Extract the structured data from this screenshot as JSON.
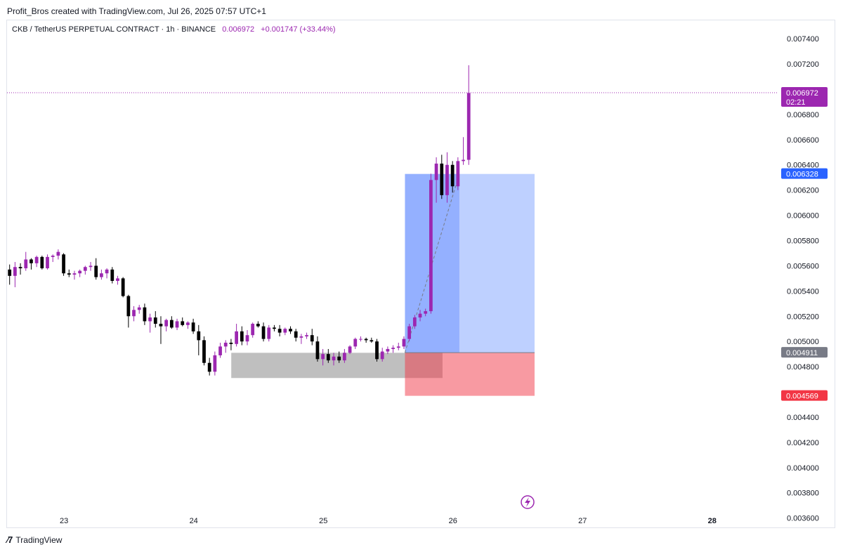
{
  "header": {
    "credit": "Profit_Bros created with TradingView.com, Jul 26, 2025 07:57 UTC+1"
  },
  "legend": {
    "symbol": "CKB / TetherUS PERPETUAL CONTRACT · 1h · BINANCE",
    "price": "0.006972",
    "change": "+0.001747 (+33.44%)"
  },
  "footer": {
    "brand": "TradingView"
  },
  "colors": {
    "bull": "#9c27b0",
    "bear": "#000000",
    "profit_zone": "#2962ff",
    "loss_zone": "#f23645",
    "base_zone": "#808080",
    "entry_tag": "#787b86",
    "target_tag": "#2962ff",
    "stop_tag": "#f23645",
    "last_price_tag": "#9c27b0"
  },
  "chart_data": {
    "type": "candlestick",
    "title": "CKB / TetherUS PERPETUAL CONTRACT · 1h · BINANCE",
    "interval": "1h",
    "y_axis": {
      "position": "right",
      "range": [
        0.00352,
        0.00754
      ],
      "ticks": [
        "0.007400",
        "0.007200",
        "0.006800",
        "0.006600",
        "0.006400",
        "0.006200",
        "0.006000",
        "0.005800",
        "0.005600",
        "0.005400",
        "0.005200",
        "0.005000",
        "0.004800",
        "0.004400",
        "0.004200",
        "0.004000",
        "0.003800",
        "0.003600"
      ]
    },
    "x_axis": {
      "range": [
        22.56,
        28.5
      ],
      "ticks": [
        {
          "value": 23,
          "label": "23"
        },
        {
          "value": 24,
          "label": "24"
        },
        {
          "value": 25,
          "label": "25"
        },
        {
          "value": 26,
          "label": "26"
        },
        {
          "value": 27,
          "label": "27"
        },
        {
          "value": 28,
          "label": "28"
        }
      ]
    },
    "grid": false,
    "candle_start_day": 22.58,
    "candle_step_day": 0.04167,
    "candles_ohlc": [
      [
        0.00557,
        0.00561,
        0.00545,
        0.00552
      ],
      [
        0.00552,
        0.00563,
        0.00543,
        0.00559
      ],
      [
        0.00559,
        0.00562,
        0.00553,
        0.00558
      ],
      [
        0.00558,
        0.00571,
        0.00556,
        0.00565
      ],
      [
        0.00565,
        0.00566,
        0.00557,
        0.00562
      ],
      [
        0.00562,
        0.00568,
        0.00559,
        0.00567
      ],
      [
        0.00567,
        0.00568,
        0.00557,
        0.00558
      ],
      [
        0.00558,
        0.00569,
        0.00557,
        0.00567
      ],
      [
        0.00567,
        0.00569,
        0.00563,
        0.00568
      ],
      [
        0.00568,
        0.00573,
        0.00565,
        0.00571
      ],
      [
        0.00569,
        0.0057,
        0.00552,
        0.00554
      ],
      [
        0.00554,
        0.00557,
        0.00551,
        0.00553
      ],
      [
        0.00553,
        0.00556,
        0.00549,
        0.00554
      ],
      [
        0.00554,
        0.00557,
        0.00551,
        0.00556
      ],
      [
        0.00556,
        0.0056,
        0.00553,
        0.00559
      ],
      [
        0.00559,
        0.00563,
        0.00556,
        0.0056
      ],
      [
        0.0056,
        0.00566,
        0.00549,
        0.00551
      ],
      [
        0.00551,
        0.00557,
        0.00549,
        0.00554
      ],
      [
        0.00554,
        0.00558,
        0.0055,
        0.00557
      ],
      [
        0.00557,
        0.00559,
        0.00546,
        0.00548
      ],
      [
        0.00548,
        0.00552,
        0.00545,
        0.0055
      ],
      [
        0.0055,
        0.00551,
        0.00535,
        0.00536
      ],
      [
        0.00536,
        0.00537,
        0.00511,
        0.0052
      ],
      [
        0.0052,
        0.00528,
        0.00516,
        0.00525
      ],
      [
        0.00525,
        0.00529,
        0.00522,
        0.00527
      ],
      [
        0.00527,
        0.0053,
        0.00513,
        0.00516
      ],
      [
        0.00516,
        0.00522,
        0.00507,
        0.00519
      ],
      [
        0.00519,
        0.00524,
        0.00511,
        0.00514
      ],
      [
        0.00514,
        0.0052,
        0.00498,
        0.00512
      ],
      [
        0.00512,
        0.00518,
        0.00508,
        0.00517
      ],
      [
        0.00517,
        0.0052,
        0.0051,
        0.00511
      ],
      [
        0.00511,
        0.00518,
        0.00509,
        0.00516
      ],
      [
        0.00516,
        0.00519,
        0.00512,
        0.00513
      ],
      [
        0.00513,
        0.00516,
        0.0051,
        0.00515
      ],
      [
        0.00515,
        0.00518,
        0.00506,
        0.00508
      ],
      [
        0.00508,
        0.00513,
        0.00489,
        0.00501
      ],
      [
        0.00501,
        0.00504,
        0.00481,
        0.00483
      ],
      [
        0.00483,
        0.00487,
        0.00473,
        0.00476
      ],
      [
        0.00476,
        0.00492,
        0.00473,
        0.00489
      ],
      [
        0.00489,
        0.00499,
        0.00487,
        0.00496
      ],
      [
        0.00496,
        0.00501,
        0.00491,
        0.00499
      ],
      [
        0.00499,
        0.00502,
        0.00493,
        0.00498
      ],
      [
        0.00498,
        0.00514,
        0.00496,
        0.00508
      ],
      [
        0.00508,
        0.00512,
        0.00497,
        0.005
      ],
      [
        0.005,
        0.00509,
        0.00497,
        0.00505
      ],
      [
        0.00505,
        0.00515,
        0.00503,
        0.00514
      ],
      [
        0.00514,
        0.00516,
        0.00511,
        0.00512
      ],
      [
        0.00512,
        0.00515,
        0.005,
        0.00502
      ],
      [
        0.00502,
        0.00513,
        0.005,
        0.00511
      ],
      [
        0.00511,
        0.00513,
        0.00508,
        0.0051
      ],
      [
        0.0051,
        0.00513,
        0.00504,
        0.00507
      ],
      [
        0.00507,
        0.00511,
        0.00505,
        0.0051
      ],
      [
        0.0051,
        0.00512,
        0.00506,
        0.00508
      ],
      [
        0.00508,
        0.0051,
        0.005,
        0.00503
      ],
      [
        0.00503,
        0.00506,
        0.00498,
        0.00504
      ],
      [
        0.00504,
        0.00507,
        0.00502,
        0.00505
      ],
      [
        0.00505,
        0.0051,
        0.00497,
        0.005
      ],
      [
        0.005,
        0.00504,
        0.00484,
        0.00486
      ],
      [
        0.00486,
        0.00494,
        0.00481,
        0.0049
      ],
      [
        0.0049,
        0.00494,
        0.00483,
        0.00485
      ],
      [
        0.00485,
        0.00491,
        0.00481,
        0.00488
      ],
      [
        0.00488,
        0.00492,
        0.00483,
        0.00485
      ],
      [
        0.00485,
        0.00494,
        0.00483,
        0.00491
      ],
      [
        0.00491,
        0.00497,
        0.0049,
        0.00496
      ],
      [
        0.00496,
        0.00503,
        0.00494,
        0.00502
      ],
      [
        0.00502,
        0.00504,
        0.005,
        0.00502
      ],
      [
        0.00502,
        0.00503,
        0.00499,
        0.00501
      ],
      [
        0.00501,
        0.00503,
        0.00499,
        0.005
      ],
      [
        0.005,
        0.00502,
        0.00484,
        0.00486
      ],
      [
        0.00486,
        0.00495,
        0.00484,
        0.00492
      ],
      [
        0.00492,
        0.00496,
        0.0049,
        0.00494
      ],
      [
        0.00494,
        0.00497,
        0.00491,
        0.00495
      ],
      [
        0.00495,
        0.00499,
        0.00493,
        0.00496
      ],
      [
        0.00496,
        0.00504,
        0.00494,
        0.00502
      ],
      [
        0.00502,
        0.00514,
        0.005,
        0.00512
      ],
      [
        0.00512,
        0.00521,
        0.0051,
        0.00519
      ],
      [
        0.00519,
        0.00525,
        0.00516,
        0.00522
      ],
      [
        0.00522,
        0.00526,
        0.0052,
        0.00524
      ],
      [
        0.00524,
        0.00633,
        0.00522,
        0.00628
      ],
      [
        0.00628,
        0.00646,
        0.0061,
        0.00641
      ],
      [
        0.00641,
        0.00648,
        0.00613,
        0.00616
      ],
      [
        0.00616,
        0.0065,
        0.0061,
        0.0064
      ],
      [
        0.0064,
        0.00643,
        0.00618,
        0.00623
      ],
      [
        0.00623,
        0.00646,
        0.0062,
        0.00643
      ],
      [
        0.00643,
        0.00662,
        0.0064,
        0.00644
      ],
      [
        0.00644,
        0.00719,
        0.0064,
        0.00697
      ]
    ],
    "position_tool": {
      "type": "long",
      "entry": 0.004911,
      "target": 0.006328,
      "stop": 0.004569,
      "start_day": 25.63,
      "end_day": 26.63
    },
    "base_zone": {
      "low": 0.00471,
      "high": 0.00491,
      "start_day": 24.29,
      "end_day": 25.92
    },
    "last_price": {
      "price": "0.006972",
      "countdown": "02:21"
    },
    "axis_tags": {
      "target": "0.006328",
      "entry": "0.004911",
      "stop": "0.004569"
    }
  }
}
